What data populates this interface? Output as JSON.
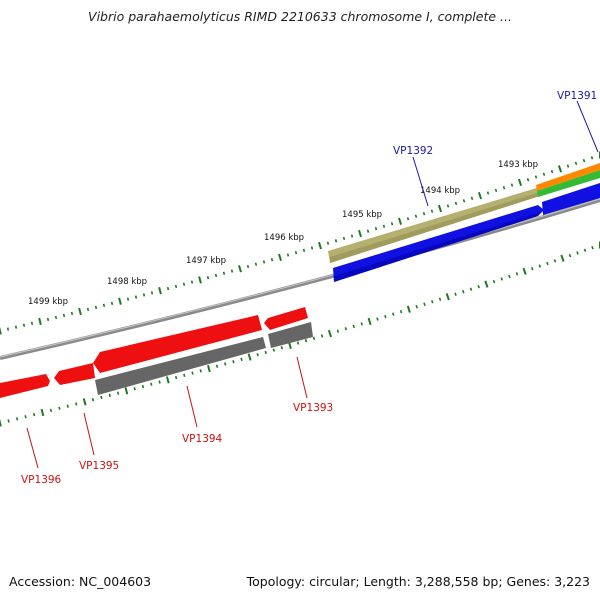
{
  "title": "Vibrio parahaemolyticus RIMD 2210633 chromosome I, complete ...",
  "footer": {
    "accession": "Accession: NC_004603",
    "summary": "Topology: circular; Length: 3,288,558 bp; Genes: 3,223"
  },
  "colors": {
    "backbone": "#8a8a8a",
    "tick": "#1e7a1e",
    "forward_label": "#1a1aa8",
    "reverse_label": "#cc1111",
    "cds_forward": "#1010e0",
    "cds_reverse": "#ee1010",
    "gene_reverse": "#666666",
    "gene_forward": "#b5b070",
    "orange": "#ff8800",
    "green": "#33bb33"
  },
  "ticks": [
    {
      "label": "1499 kbp"
    },
    {
      "label": "1498 kbp"
    },
    {
      "label": "1497 kbp"
    },
    {
      "label": "1496 kbp"
    },
    {
      "label": "1495 kbp"
    },
    {
      "label": "1494 kbp"
    },
    {
      "label": "1493 kbp"
    }
  ],
  "genes": [
    {
      "name": "VP1391",
      "strand": "forward"
    },
    {
      "name": "VP1392",
      "strand": "forward"
    },
    {
      "name": "VP1393",
      "strand": "reverse"
    },
    {
      "name": "VP1394",
      "strand": "reverse"
    },
    {
      "name": "VP1395",
      "strand": "reverse"
    },
    {
      "name": "VP1396",
      "strand": "reverse"
    }
  ]
}
